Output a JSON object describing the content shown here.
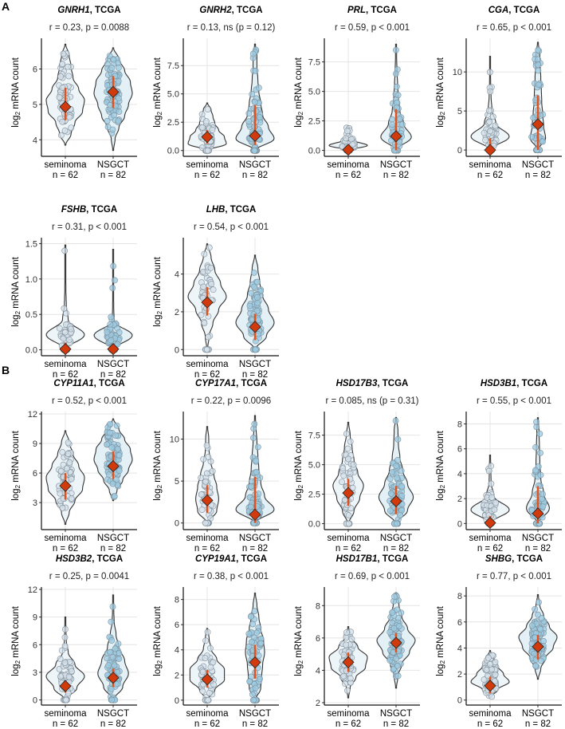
{
  "sections": [
    "A",
    "B"
  ],
  "axis": {
    "ylabel_main": "log",
    "ylabel_sub": "2",
    "ylabel_rest": " mRNA count",
    "group_labels": [
      "seminoma",
      "NSGCT"
    ],
    "n_labels": [
      "n = 62",
      "n = 82"
    ],
    "title_suffix": ", TCGA"
  },
  "colors": {
    "sem_fill": "#eef5f9",
    "nsgct_fill": "#e3f0f6",
    "sem_point": "#d6e0ea",
    "nsgct_point": "#9ccbe2",
    "mean": "#d13a0c",
    "sd": "#e4521c",
    "grid": "#e4e4e4"
  },
  "chart_data": [
    {
      "type": "violin",
      "section": "A",
      "gene": "GNRH1",
      "stat": "r = 0.23, p = 0.0088",
      "ylim": [
        3.6,
        6.8
      ],
      "ticks": [
        4,
        5,
        6
      ],
      "tick_labels": [
        "4",
        "5",
        "6"
      ],
      "groups": [
        {
          "name": "seminoma",
          "n": 62,
          "min": 3.85,
          "max": 6.7,
          "mean": 4.93,
          "sd": [
            4.55,
            5.47
          ],
          "density": [
            0.3,
            0.5,
            0.9,
            1,
            0.7,
            0.4,
            0.3,
            0.2
          ]
        },
        {
          "name": "NSGCT",
          "n": 82,
          "min": 3.7,
          "max": 6.6,
          "mean": 5.35,
          "sd": [
            4.9,
            5.8
          ],
          "density": [
            0.1,
            0.3,
            0.6,
            0.8,
            1,
            0.9,
            0.6,
            0.3
          ]
        }
      ]
    },
    {
      "type": "violin",
      "section": "A",
      "gene": "GNRH2",
      "stat": "r = 0.13, ns (p = 0.12)",
      "ylim": [
        -0.3,
        9.7
      ],
      "ticks": [
        0,
        2.5,
        5,
        7.5
      ],
      "tick_labels": [
        "0.0",
        "2.5",
        "5.0",
        "7.5"
      ],
      "groups": [
        {
          "name": "seminoma",
          "n": 62,
          "min": 0,
          "max": 4.2,
          "mean": 1.2,
          "sd": [
            0.6,
            1.8
          ],
          "density": [
            1,
            0.9,
            0.6,
            0.4,
            0.3,
            0.2
          ]
        },
        {
          "name": "NSGCT",
          "n": 82,
          "min": 0,
          "max": 9.4,
          "mean": 1.3,
          "sd": [
            0.5,
            4.0
          ],
          "density": [
            1,
            0.7,
            0.4,
            0.3,
            0.2,
            0.15,
            0.1,
            0.1
          ]
        }
      ]
    },
    {
      "type": "violin",
      "section": "A",
      "gene": "PRL",
      "stat": "r = 0.59, p < 0.001",
      "ylim": [
        -0.3,
        9.3
      ],
      "ticks": [
        0,
        2.5,
        5,
        7.5
      ],
      "tick_labels": [
        "0.0",
        "2.5",
        "5.0",
        "7.5"
      ],
      "groups": [
        {
          "name": "seminoma",
          "n": 62,
          "min": 0,
          "max": 2.1,
          "mean": 0.05,
          "sd": [
            0,
            0.5
          ],
          "density": [
            1,
            0.3,
            0.1,
            0.05
          ]
        },
        {
          "name": "NSGCT",
          "n": 82,
          "min": 0,
          "max": 9.0,
          "mean": 1.2,
          "sd": [
            0,
            3.5
          ],
          "density": [
            0.8,
            0.4,
            0.2,
            0.12,
            0.08,
            0.05,
            0.03
          ]
        }
      ]
    },
    {
      "type": "violin",
      "section": "A",
      "gene": "CGA",
      "stat": "r = 0.65, p < 0.001",
      "ylim": [
        -0.5,
        14
      ],
      "ticks": [
        0,
        5,
        10
      ],
      "tick_labels": [
        "0",
        "5",
        "10"
      ],
      "groups": [
        {
          "name": "seminoma",
          "n": 62,
          "min": 0,
          "max": 12,
          "mean": 0,
          "sd": [
            0,
            1.5
          ],
          "density": [
            1,
            0.3,
            0.1,
            0.05,
            0.03,
            0.02
          ]
        },
        {
          "name": "NSGCT",
          "n": 82,
          "min": 0,
          "max": 13.8,
          "mean": 3.3,
          "sd": [
            0,
            7
          ],
          "density": [
            0.4,
            0.3,
            0.25,
            0.2,
            0.18,
            0.15,
            0.12,
            0.1
          ]
        }
      ]
    },
    {
      "type": "violin",
      "section": "A",
      "gene": "FSHB",
      "stat": "r = 0.31, p < 0.001",
      "ylim": [
        -0.05,
        1.55
      ],
      "ticks": [
        0,
        0.5,
        1,
        1.5
      ],
      "tick_labels": [
        "0.0",
        "0.5",
        "1.0",
        "1.5"
      ],
      "groups": [
        {
          "name": "seminoma",
          "n": 62,
          "min": 0,
          "max": 1.48,
          "mean": 0.01,
          "sd": [
            0,
            0.1
          ],
          "density": [
            1,
            0.15,
            0.05,
            0.03,
            0.02,
            0.02
          ]
        },
        {
          "name": "NSGCT",
          "n": 82,
          "min": 0,
          "max": 1.42,
          "mean": 0.01,
          "sd": [
            0,
            0.05
          ],
          "density": [
            1,
            0.05,
            0.03,
            0.02,
            0.02,
            0.02
          ]
        }
      ]
    },
    {
      "type": "violin",
      "section": "A",
      "gene": "LHB",
      "stat": "r = 0.54, p < 0.001",
      "ylim": [
        -0.2,
        5.8
      ],
      "ticks": [
        0,
        2,
        4
      ],
      "tick_labels": [
        "0",
        "2",
        "4"
      ],
      "groups": [
        {
          "name": "seminoma",
          "n": 62,
          "min": 0,
          "max": 5.6,
          "mean": 2.5,
          "sd": [
            1.8,
            3.3
          ],
          "density": [
            0.1,
            0.3,
            0.6,
            1,
            0.7,
            0.4,
            0.2
          ]
        },
        {
          "name": "NSGCT",
          "n": 82,
          "min": 0,
          "max": 5.0,
          "mean": 1.2,
          "sd": [
            0.5,
            1.9
          ],
          "density": [
            0.6,
            1,
            0.7,
            0.4,
            0.25,
            0.15
          ]
        }
      ]
    },
    {
      "type": "violin",
      "section": "B",
      "gene": "CYP11A1",
      "stat": "r = 0.52, p < 0.001",
      "ylim": [
        0.5,
        12
      ],
      "ticks": [
        3,
        6,
        9,
        12
      ],
      "tick_labels": [
        "3",
        "6",
        "9",
        "12"
      ],
      "groups": [
        {
          "name": "seminoma",
          "n": 62,
          "min": 0.8,
          "max": 10.3,
          "mean": 4.7,
          "sd": [
            3.3,
            6.0
          ],
          "density": [
            0.2,
            0.5,
            0.9,
            1,
            0.7,
            0.4,
            0.2
          ]
        },
        {
          "name": "NSGCT",
          "n": 82,
          "min": 3.2,
          "max": 11.5,
          "mean": 6.7,
          "sd": [
            5.4,
            8.2
          ],
          "density": [
            0.2,
            0.5,
            0.8,
            1,
            0.9,
            0.6,
            0.3
          ]
        }
      ]
    },
    {
      "type": "violin",
      "section": "B",
      "gene": "CYP17A1",
      "stat": "r = 0.22, p = 0.0096",
      "ylim": [
        -0.5,
        13
      ],
      "ticks": [
        0,
        5,
        10
      ],
      "tick_labels": [
        "0",
        "5",
        "10"
      ],
      "groups": [
        {
          "name": "seminoma",
          "n": 62,
          "min": 0,
          "max": 11.5,
          "mean": 2.7,
          "sd": [
            1.2,
            4.5
          ],
          "density": [
            0.5,
            0.6,
            0.5,
            0.35,
            0.2,
            0.1,
            0.08
          ]
        },
        {
          "name": "NSGCT",
          "n": 82,
          "min": 0,
          "max": 12.8,
          "mean": 1.0,
          "sd": [
            0,
            5.5
          ],
          "density": [
            1,
            0.5,
            0.3,
            0.2,
            0.15,
            0.1,
            0.06
          ]
        }
      ]
    },
    {
      "type": "violin",
      "section": "B",
      "gene": "HSD17B3",
      "stat": "r = 0.085, ns (p = 0.31)",
      "ylim": [
        -0.3,
        9.3
      ],
      "ticks": [
        0,
        2.5,
        5,
        7.5
      ],
      "tick_labels": [
        "0.0",
        "2.5",
        "5.0",
        "7.5"
      ],
      "groups": [
        {
          "name": "seminoma",
          "n": 62,
          "min": 0,
          "max": 8.6,
          "mean": 2.6,
          "sd": [
            1.5,
            3.8
          ],
          "density": [
            0.3,
            0.6,
            0.8,
            0.5,
            0.3,
            0.2,
            0.1
          ]
        },
        {
          "name": "NSGCT",
          "n": 82,
          "min": 0,
          "max": 9.0,
          "mean": 1.9,
          "sd": [
            0.8,
            3.2
          ],
          "density": [
            0.6,
            0.9,
            0.6,
            0.35,
            0.2,
            0.12,
            0.1
          ]
        }
      ]
    },
    {
      "type": "violin",
      "section": "B",
      "gene": "HSD3B1",
      "stat": "r = 0.55, p < 0.001",
      "ylim": [
        -0.3,
        8.8
      ],
      "ticks": [
        0,
        2,
        4,
        6,
        8
      ],
      "tick_labels": [
        "0",
        "2",
        "4",
        "6",
        "8"
      ],
      "groups": [
        {
          "name": "seminoma",
          "n": 62,
          "min": 0,
          "max": 5.5,
          "mean": 0.05,
          "sd": [
            0,
            0.6
          ],
          "density": [
            1,
            0.2,
            0.05,
            0.04
          ]
        },
        {
          "name": "NSGCT",
          "n": 82,
          "min": 0,
          "max": 8.5,
          "mean": 0.8,
          "sd": [
            0,
            3
          ],
          "density": [
            0.6,
            0.3,
            0.15,
            0.1,
            0.08,
            0.06
          ]
        }
      ]
    },
    {
      "type": "violin",
      "section": "B",
      "gene": "HSD3B2",
      "stat": "r = 0.25, p = 0.0041",
      "ylim": [
        -0.3,
        12
      ],
      "ticks": [
        0,
        3,
        6,
        9,
        12
      ],
      "tick_labels": [
        "0",
        "3",
        "6",
        "9",
        "12"
      ],
      "groups": [
        {
          "name": "seminoma",
          "n": 62,
          "min": 0,
          "max": 9.0,
          "mean": 1.5,
          "sd": [
            0.8,
            2.1
          ],
          "density": [
            0.6,
            1,
            0.5,
            0.15,
            0.05,
            0.03
          ]
        },
        {
          "name": "NSGCT",
          "n": 82,
          "min": 0,
          "max": 11.4,
          "mean": 2.4,
          "sd": [
            1.4,
            3.4
          ],
          "density": [
            0.5,
            0.8,
            0.6,
            0.3,
            0.15,
            0.05,
            0.03
          ]
        }
      ]
    },
    {
      "type": "violin",
      "section": "B",
      "gene": "CYP19A1",
      "stat": "r = 0.38, p < 0.001",
      "ylim": [
        -0.2,
        8.8
      ],
      "ticks": [
        0,
        2,
        4,
        6,
        8
      ],
      "tick_labels": [
        "0",
        "2",
        "4",
        "6",
        "8"
      ],
      "groups": [
        {
          "name": "seminoma",
          "n": 62,
          "min": 0,
          "max": 5.7,
          "mean": 1.65,
          "sd": [
            1.0,
            2.4
          ],
          "density": [
            0.4,
            0.9,
            0.9,
            0.5,
            0.2,
            0.1
          ]
        },
        {
          "name": "NSGCT",
          "n": 82,
          "min": 0,
          "max": 8.5,
          "mean": 3.0,
          "sd": [
            1.7,
            4.4
          ],
          "density": [
            0.3,
            0.35,
            0.4,
            0.5,
            0.45,
            0.3,
            0.2,
            0.1
          ]
        }
      ]
    },
    {
      "type": "violin",
      "section": "B",
      "gene": "HSD17B1",
      "stat": "r = 0.69, p < 0.001",
      "ylim": [
        2,
        9
      ],
      "ticks": [
        2,
        4,
        6,
        8
      ],
      "tick_labels": [
        "2",
        "4",
        "6",
        "8"
      ],
      "groups": [
        {
          "name": "seminoma",
          "n": 62,
          "min": 2.3,
          "max": 6.7,
          "mean": 4.5,
          "sd": [
            3.9,
            5.1
          ],
          "density": [
            0.1,
            0.4,
            0.9,
            1,
            0.5,
            0.15
          ]
        },
        {
          "name": "NSGCT",
          "n": 82,
          "min": 2.9,
          "max": 8.8,
          "mean": 5.7,
          "sd": [
            5.1,
            6.3
          ],
          "density": [
            0.1,
            0.3,
            0.7,
            1,
            0.6,
            0.3,
            0.15
          ]
        }
      ]
    },
    {
      "type": "violin",
      "section": "B",
      "gene": "SHBG",
      "stat": "r = 0.77, p < 0.001",
      "ylim": [
        -0.2,
        8.5
      ],
      "ticks": [
        0,
        2,
        4,
        6,
        8
      ],
      "tick_labels": [
        "0",
        "2",
        "4",
        "6",
        "8"
      ],
      "groups": [
        {
          "name": "seminoma",
          "n": 62,
          "min": 0.2,
          "max": 3.8,
          "mean": 1.1,
          "sd": [
            0.5,
            1.8
          ],
          "density": [
            0.4,
            1,
            0.7,
            0.4,
            0.2
          ]
        },
        {
          "name": "NSGCT",
          "n": 82,
          "min": 1.6,
          "max": 8.1,
          "mean": 4.1,
          "sd": [
            3.1,
            5.0
          ],
          "density": [
            0.15,
            0.4,
            0.8,
            1,
            0.6,
            0.3,
            0.1
          ]
        }
      ]
    }
  ]
}
